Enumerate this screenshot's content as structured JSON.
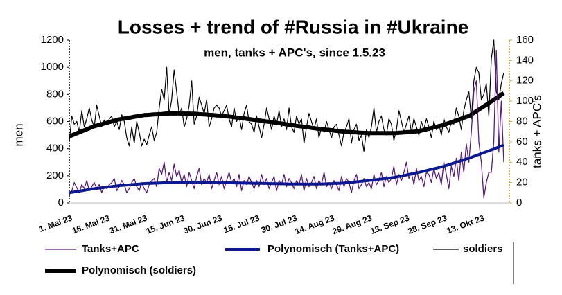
{
  "chart_data": {
    "type": "line",
    "title": "Losses + trend of #Russia in #Ukraine",
    "subtitle": "men, tanks + APC's, since 1.5.23",
    "y_label": "men",
    "y2_label": "tanks + APC's",
    "legend": "bottom",
    "categories": [
      "1. Mai 23",
      null,
      null,
      null,
      null,
      null,
      null,
      null,
      null,
      null,
      null,
      null,
      null,
      null,
      null,
      "16. Mai 23",
      null,
      null,
      null,
      null,
      null,
      null,
      null,
      null,
      null,
      null,
      null,
      null,
      null,
      null,
      "31. Mai 23",
      null,
      null,
      null,
      null,
      null,
      null,
      null,
      null,
      null,
      null,
      null,
      null,
      null,
      null,
      "15. Jun 23",
      null,
      null,
      null,
      null,
      null,
      null,
      null,
      null,
      null,
      null,
      null,
      null,
      null,
      null,
      "30. Jun 23",
      null,
      null,
      null,
      null,
      null,
      null,
      null,
      null,
      null,
      null,
      null,
      null,
      null,
      null,
      "15. Jul 23",
      null,
      null,
      null,
      null,
      null,
      null,
      null,
      null,
      null,
      null,
      null,
      null,
      null,
      null,
      "30. Jul 23",
      null,
      null,
      null,
      null,
      null,
      null,
      null,
      null,
      null,
      null,
      null,
      null,
      null,
      null,
      "14. Aug 23",
      null,
      null,
      null,
      null,
      null,
      null,
      null,
      null,
      null,
      null,
      null,
      null,
      null,
      null,
      "29. Aug 23",
      null,
      null,
      null,
      null,
      null,
      null,
      null,
      null,
      null,
      null,
      null,
      null,
      null,
      null,
      "13. Sep 23",
      null,
      null,
      null,
      null,
      null,
      null,
      null,
      null,
      null,
      null,
      null,
      null,
      null,
      null,
      "28. Sep 23",
      null,
      null,
      null,
      null,
      null,
      null,
      null,
      null,
      null,
      null,
      null,
      null,
      null,
      null,
      "13. Okt 23",
      null,
      null,
      null,
      null,
      null,
      null,
      null,
      null,
      null
    ],
    "ylim": [
      0,
      1200
    ],
    "yticks": [
      0,
      200,
      400,
      600,
      800,
      1000,
      1200
    ],
    "y2lim": [
      0,
      160
    ],
    "y2ticks": [
      0,
      20,
      40,
      60,
      80,
      100,
      120,
      140,
      160
    ],
    "series": [
      {
        "name": "Tanks+APC",
        "color": "#5a1a7e",
        "width": 1.3,
        "axis": "y2",
        "values": [
          8,
          12,
          20,
          15,
          10,
          18,
          14,
          22,
          12,
          16,
          20,
          14,
          18,
          10,
          16,
          14,
          18,
          20,
          24,
          12,
          16,
          22,
          18,
          10,
          14,
          20,
          24,
          16,
          12,
          20,
          14,
          10,
          18,
          22,
          24,
          16,
          34,
          28,
          40,
          20,
          30,
          22,
          38,
          26,
          32,
          20,
          28,
          16,
          30,
          22,
          14,
          26,
          34,
          18,
          24,
          20,
          28,
          14,
          22,
          30,
          18,
          26,
          14,
          22,
          30,
          20,
          24,
          16,
          28,
          12,
          22,
          18,
          26,
          20,
          14,
          22,
          16,
          28,
          18,
          24,
          14,
          20,
          26,
          12,
          22,
          18,
          28,
          16,
          24,
          20,
          14,
          22,
          18,
          28,
          12,
          24,
          16,
          20,
          26,
          14,
          22,
          18,
          30,
          16,
          20,
          14,
          22,
          18,
          12,
          26,
          16,
          24,
          20,
          10,
          22,
          28,
          14,
          18,
          24,
          16,
          20,
          14,
          28,
          18,
          22,
          30,
          16,
          26,
          20,
          24,
          36,
          18,
          28,
          22,
          30,
          40,
          24,
          30,
          18,
          34,
          22,
          26,
          16,
          30,
          28,
          20,
          34,
          24,
          30,
          18,
          40,
          28,
          14,
          36,
          26,
          44,
          22,
          50,
          30,
          58,
          40,
          70,
          110,
          120,
          60,
          40,
          5,
          20,
          30,
          30,
          60,
          150,
          50,
          100,
          40
        ]
      },
      {
        "name": "Polynomisch (Tanks+APC)",
        "color": "#0c1890",
        "width": 4,
        "axis": "y2",
        "values": [
          10,
          10.4,
          10.8,
          11.2,
          11.6,
          12,
          12.4,
          12.8,
          13.2,
          13.6,
          14,
          14.3,
          14.6,
          14.9,
          15.2,
          15.5,
          15.8,
          16.1,
          16.4,
          16.7,
          17,
          17.2,
          17.4,
          17.6,
          17.8,
          18,
          18.2,
          18.4,
          18.6,
          18.8,
          19,
          19.1,
          19.2,
          19.3,
          19.4,
          19.5,
          19.6,
          19.7,
          19.8,
          19.9,
          20,
          20,
          20.1,
          20.1,
          20.2,
          20.2,
          20.3,
          20.3,
          20.4,
          20.4,
          20.5,
          20.4,
          20.4,
          20.3,
          20.3,
          20.2,
          20.2,
          20.1,
          20.1,
          20,
          20,
          20,
          19.9,
          19.9,
          19.8,
          19.8,
          19.7,
          19.7,
          19.6,
          19.6,
          19.5,
          19.5,
          19.4,
          19.4,
          19.3,
          19.3,
          19.2,
          19.2,
          19.1,
          19.1,
          19,
          19,
          18.9,
          18.9,
          18.8,
          18.8,
          18.7,
          18.7,
          18.6,
          18.6,
          18.5,
          18.5,
          18.5,
          18.5,
          18.5,
          18.5,
          18.5,
          18.5,
          18.5,
          18.5,
          18.5,
          18.6,
          18.7,
          18.8,
          18.9,
          19,
          19.1,
          19.2,
          19.3,
          19.4,
          19.5,
          19.8,
          20,
          20.3,
          20.5,
          20.8,
          21,
          21.3,
          21.5,
          21.8,
          22,
          22.3,
          22.6,
          22.9,
          23.2,
          23.5,
          23.8,
          24.1,
          24.4,
          24.7,
          25,
          25.5,
          26,
          26.5,
          27,
          27.5,
          28,
          28.5,
          29,
          29.5,
          30,
          30.6,
          31.2,
          31.8,
          32.4,
          33,
          33.6,
          34.2,
          34.8,
          35.4,
          36,
          36.8,
          37.6,
          38.4,
          39.2,
          40,
          40.8,
          41.6,
          42.4,
          43.2,
          44,
          44.9,
          45.8,
          46.7,
          47.6,
          48.5,
          49.4,
          50.3,
          51.2,
          52.1,
          53,
          54,
          55,
          56,
          57
        ]
      },
      {
        "name": "soldiers",
        "color": "#000000",
        "width": 1.2,
        "values": [
          450,
          640,
          580,
          600,
          520,
          680,
          560,
          620,
          700,
          610,
          560,
          720,
          640,
          560,
          610,
          580,
          620,
          640,
          560,
          600,
          540,
          650,
          600,
          480,
          420,
          560,
          440,
          600,
          520,
          420,
          470,
          430,
          500,
          560,
          460,
          520,
          700,
          840,
          760,
          1000,
          650,
          760,
          980,
          820,
          650,
          700,
          560,
          620,
          720,
          900,
          580,
          640,
          780,
          720,
          660,
          760,
          560,
          620,
          700,
          720,
          700,
          640,
          680,
          720,
          620,
          560,
          700,
          600,
          640,
          540,
          660,
          720,
          600,
          580,
          520,
          640,
          560,
          480,
          580,
          700,
          620,
          540,
          640,
          580,
          680,
          560,
          620,
          540,
          700,
          560,
          520,
          640,
          580,
          620,
          440,
          560,
          660,
          600,
          540,
          620,
          480,
          560,
          520,
          600,
          540,
          480,
          560,
          580,
          500,
          420,
          520,
          560,
          620,
          440,
          540,
          580,
          460,
          500,
          380,
          540,
          480,
          560,
          700,
          520,
          600,
          640,
          540,
          500,
          620,
          580,
          460,
          540,
          680,
          600,
          520,
          580,
          640,
          520,
          620,
          560,
          500,
          600,
          540,
          620,
          560,
          480,
          600,
          540,
          580,
          500,
          620,
          560,
          520,
          600,
          580,
          700,
          640,
          540,
          680,
          760,
          820,
          620,
          900,
          1000,
          960,
          760,
          800,
          880,
          640,
          1060,
          1200,
          820,
          760,
          880,
          960
        ]
      },
      {
        "name": "Polynomisch (soldiers)",
        "color": "#000000",
        "width": 6,
        "values": [
          490,
          498,
          505,
          513,
          520,
          528,
          535,
          543,
          550,
          558,
          565,
          570,
          575,
          580,
          585,
          590,
          596,
          601,
          606,
          611,
          616,
          619,
          622,
          625,
          628,
          631,
          635,
          638,
          641,
          644,
          647,
          648,
          649,
          651,
          652,
          653,
          654,
          655,
          657,
          658,
          659,
          659,
          659,
          659,
          659,
          658,
          658,
          658,
          658,
          657,
          657,
          656,
          654,
          653,
          652,
          651,
          649,
          648,
          647,
          645,
          644,
          642,
          640,
          638,
          636,
          634,
          631,
          629,
          627,
          625,
          623,
          620,
          618,
          615,
          613,
          610,
          608,
          605,
          603,
          600,
          598,
          595,
          593,
          590,
          587,
          585,
          582,
          579,
          576,
          574,
          571,
          568,
          566,
          563,
          561,
          558,
          556,
          553,
          551,
          548,
          546,
          544,
          542,
          540,
          538,
          536,
          533,
          531,
          529,
          527,
          525,
          524,
          523,
          522,
          521,
          520,
          518,
          517,
          516,
          515,
          514,
          514,
          514,
          514,
          514,
          514,
          514,
          514,
          514,
          514,
          514,
          515,
          517,
          518,
          520,
          521,
          522,
          524,
          525,
          527,
          528,
          533,
          538,
          542,
          547,
          552,
          556,
          561,
          566,
          570,
          575,
          582,
          588,
          595,
          601,
          608,
          614,
          621,
          627,
          634,
          640,
          652,
          664,
          676,
          688,
          700,
          712,
          724,
          736,
          748,
          760,
          773,
          785,
          798,
          810
        ]
      }
    ]
  }
}
